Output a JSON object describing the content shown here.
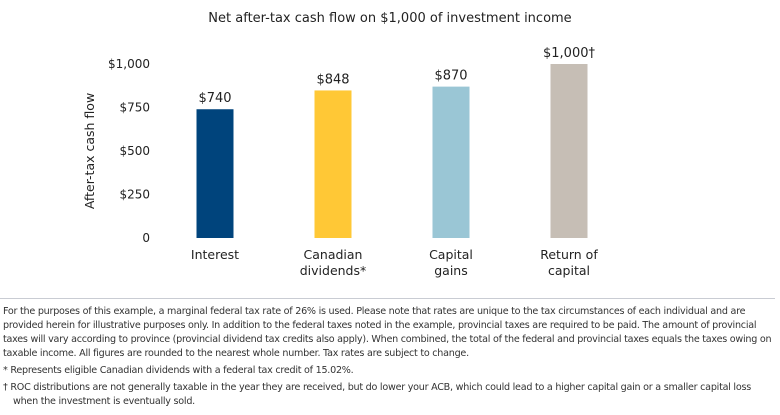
{
  "chart_data": {
    "type": "bar",
    "title": "Net after-tax cash flow on $1,000 of investment income",
    "ylabel": "After-tax cash flow",
    "xlabel": "",
    "ylim": [
      0,
      1000
    ],
    "yticks": [
      0,
      250,
      500,
      750,
      1000
    ],
    "ytick_labels": [
      "0",
      "$250",
      "$500",
      "$750",
      "$1,000"
    ],
    "grid": false,
    "categories": [
      [
        "Interest"
      ],
      [
        "Canadian",
        "dividends*"
      ],
      [
        "Capital",
        "gains"
      ],
      [
        "Return of",
        "capital"
      ]
    ],
    "values": [
      740,
      848,
      870,
      1000
    ],
    "data_labels": [
      "$740",
      "$848",
      "$870",
      "$1,000†"
    ],
    "colors": [
      "#00447c",
      "#ffc836",
      "#9ac6d5",
      "#c6beb5"
    ]
  },
  "notes": {
    "main": "For the purposes of this example, a marginal federal tax rate of 26% is used. Please note that rates are unique to the tax circumstances of each individual and are provided herein for illustrative purposes only. In addition to the federal taxes noted in the example, provincial taxes are required to be paid. The amount of provincial taxes will vary according to province (provincial dividend tax credits also apply). When combined, the total of the federal and provincial taxes equals the taxes owing on taxable income. All figures are rounded to the nearest whole number. Tax rates are subject to change.",
    "footnote_1": "* Represents eligible Canadian dividends with a federal tax credit of 15.02%.",
    "footnote_2": "† ROC distributions are not generally taxable in the year they are received, but do lower your ACB, which could lead to a higher capital gain or a smaller capital loss when the investment is eventually sold."
  }
}
